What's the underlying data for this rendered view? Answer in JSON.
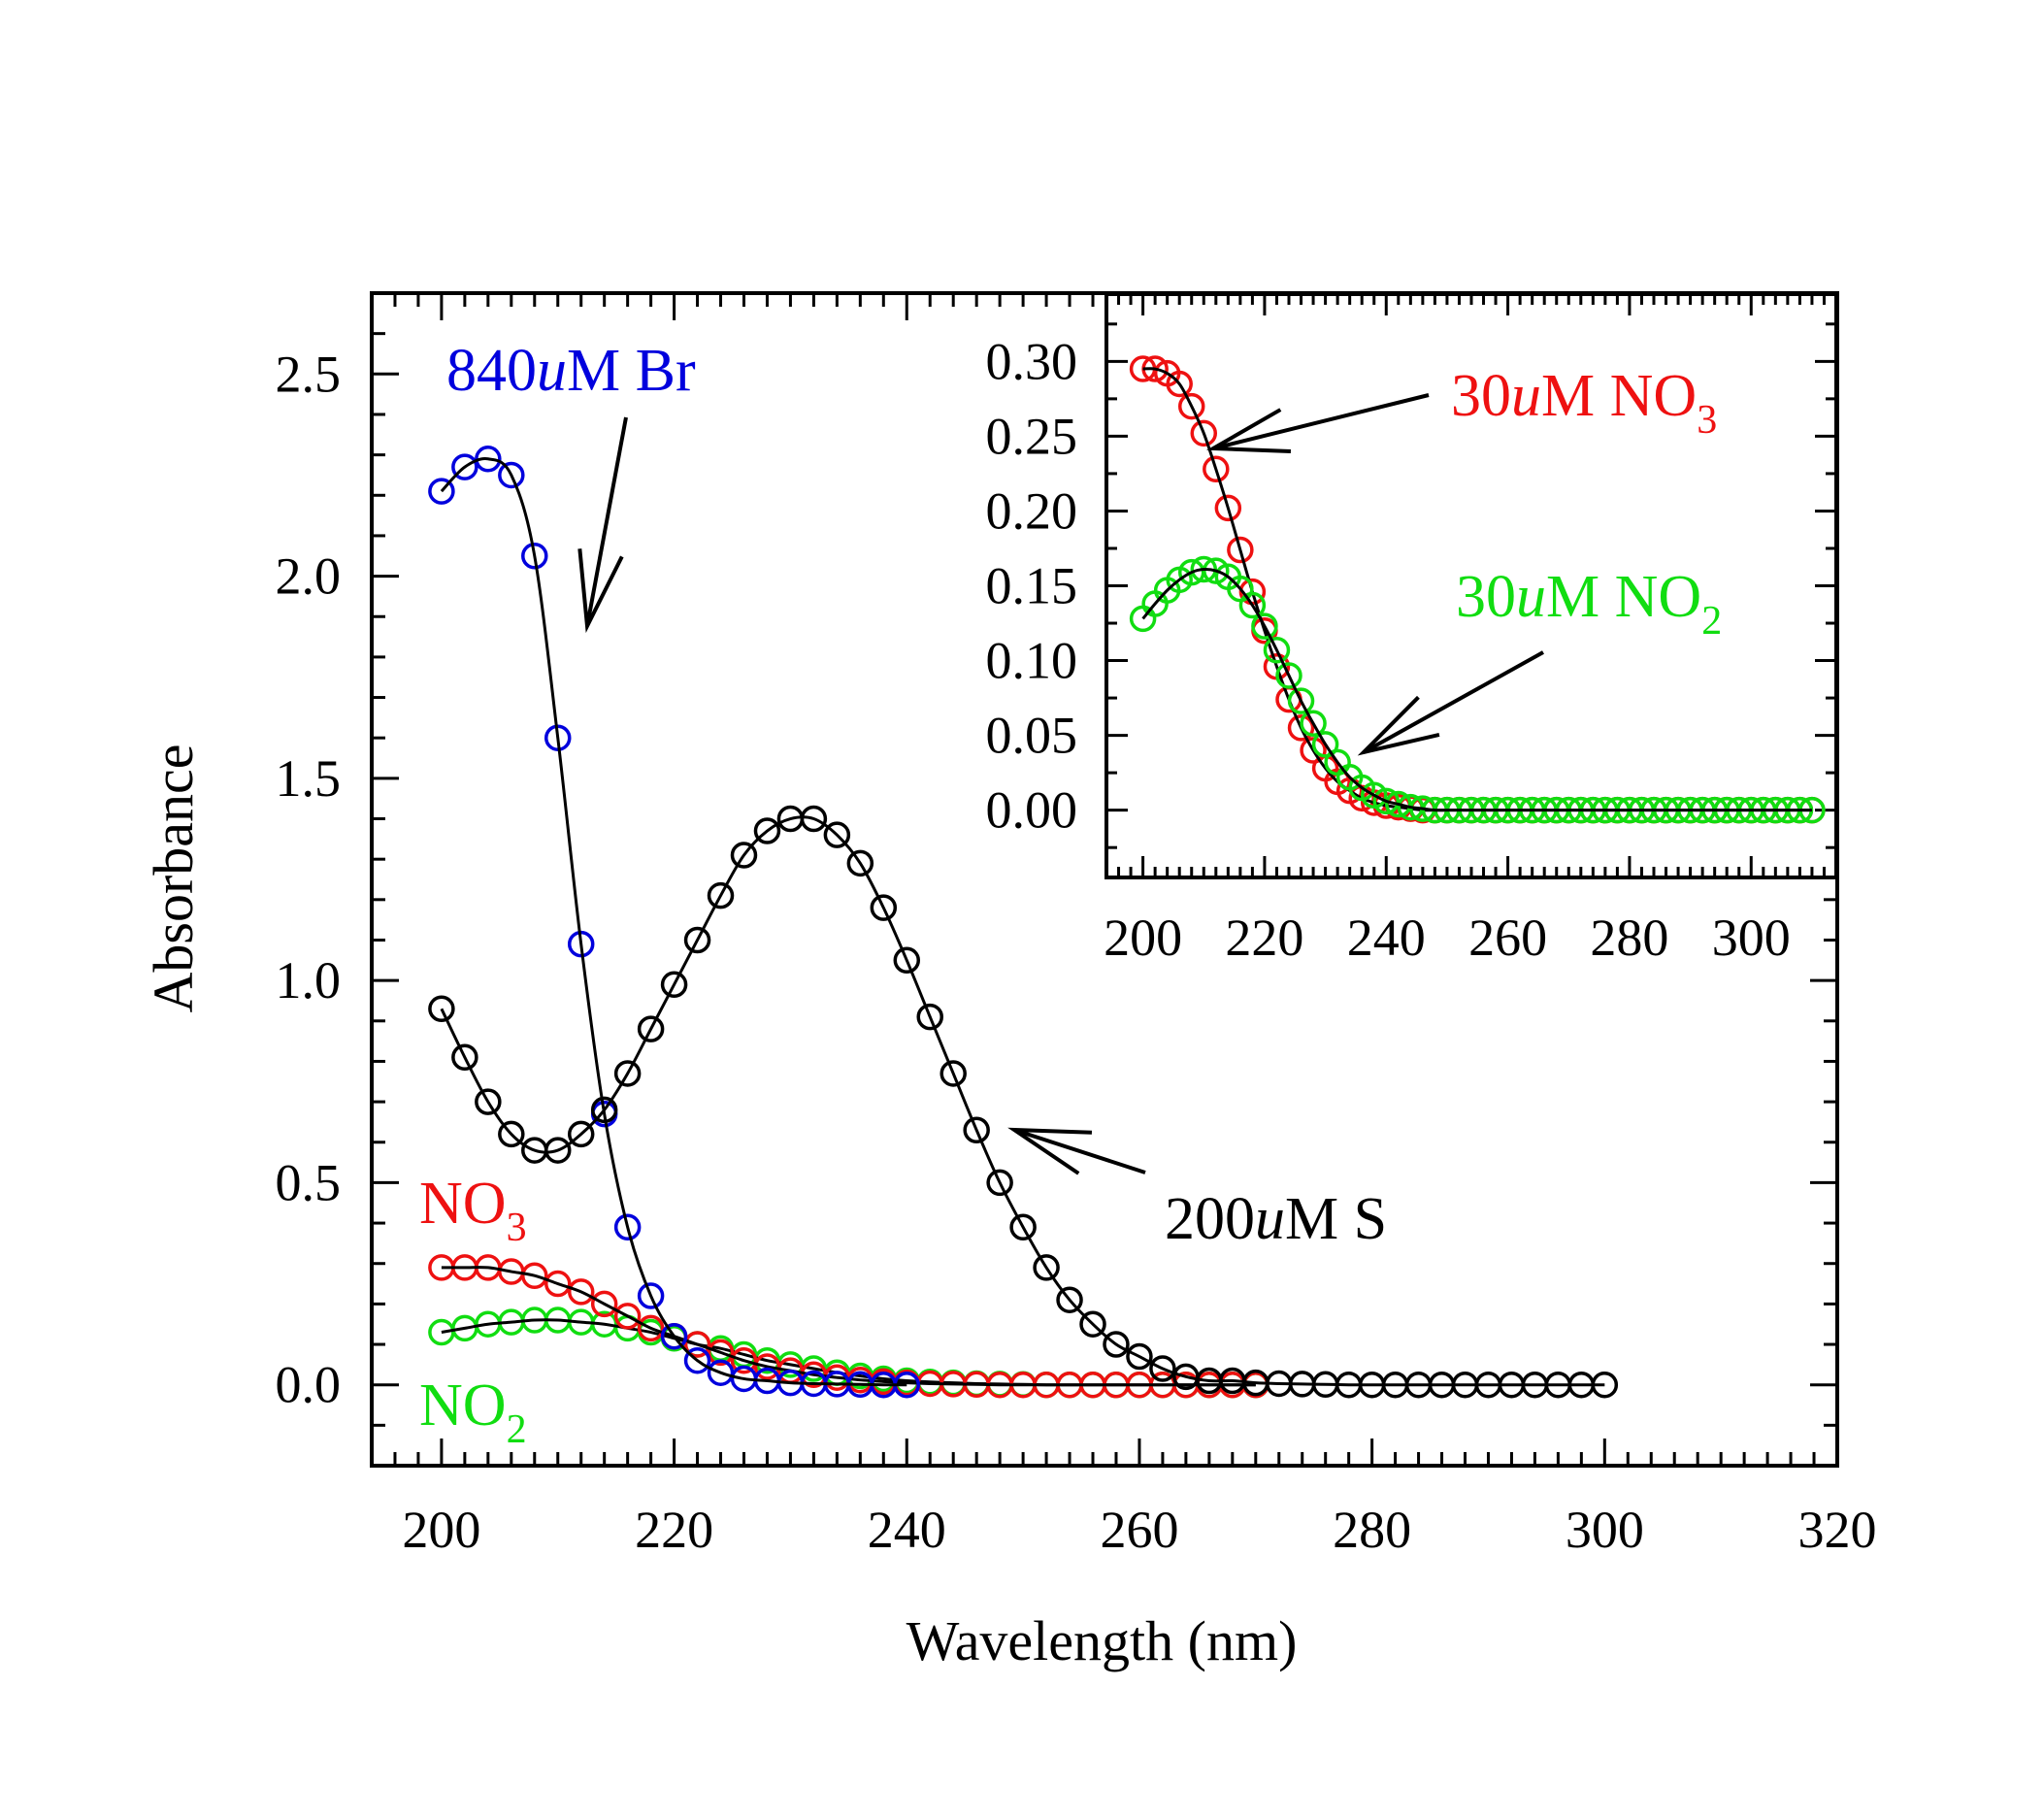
{
  "colors": {
    "Br": "#0000dd",
    "S": "#000000",
    "NO3": "#ee1111",
    "NO2": "#11dd11",
    "fit": "#000000"
  },
  "chart_data": [
    {
      "type": "scatter",
      "panel": "main",
      "xlabel": "Wavelength (nm)",
      "ylabel": "Absorbance",
      "xlim": [
        194,
        320
      ],
      "ylim": [
        -0.2,
        2.7
      ],
      "xticks": [
        200,
        220,
        240,
        260,
        280,
        300,
        320
      ],
      "yticks": [
        0.0,
        0.5,
        1.0,
        1.5,
        2.0,
        2.5
      ],
      "x_tick_labels": [
        "200",
        "220",
        "240",
        "260",
        "280",
        "300",
        "320"
      ],
      "y_tick_labels": [
        "0.0",
        "0.5",
        "1.0",
        "1.5",
        "2.0",
        "2.5"
      ],
      "annotations": [
        {
          "key": "Br",
          "prefix": "840",
          "italic": "u",
          "suffix": "M Br",
          "sub": ""
        },
        {
          "key": "S",
          "prefix": "200",
          "italic": "u",
          "suffix": "M S",
          "sub": ""
        },
        {
          "key": "NO3",
          "prefix": "",
          "italic": "",
          "suffix": "NO",
          "sub": "3"
        },
        {
          "key": "NO2",
          "prefix": "",
          "italic": "",
          "suffix": "NO",
          "sub": "2"
        }
      ],
      "series": [
        {
          "key": "Br",
          "x": [
            200,
            202,
            204,
            206,
            208,
            210,
            212,
            214,
            216,
            218,
            220,
            222,
            224,
            226,
            228,
            230,
            232,
            234,
            236,
            238,
            240
          ],
          "y": [
            2.21,
            2.27,
            2.29,
            2.25,
            2.05,
            1.6,
            1.09,
            0.67,
            0.39,
            0.22,
            0.12,
            0.06,
            0.03,
            0.015,
            0.01,
            0.005,
            0.003,
            0.002,
            0.001,
            0.0,
            0.0
          ]
        },
        {
          "key": "S",
          "x": [
            200,
            202,
            204,
            206,
            208,
            210,
            212,
            214,
            216,
            218,
            220,
            222,
            224,
            226,
            228,
            230,
            232,
            234,
            236,
            238,
            240,
            242,
            244,
            246,
            248,
            250,
            252,
            254,
            256,
            258,
            260,
            262,
            264,
            266,
            268,
            270,
            272,
            274,
            276,
            278,
            280,
            282,
            284,
            286,
            288,
            290,
            292,
            294,
            296,
            298,
            300
          ],
          "y": [
            0.93,
            0.81,
            0.7,
            0.62,
            0.58,
            0.58,
            0.62,
            0.68,
            0.77,
            0.88,
            0.99,
            1.1,
            1.21,
            1.31,
            1.37,
            1.4,
            1.4,
            1.36,
            1.29,
            1.18,
            1.05,
            0.91,
            0.77,
            0.63,
            0.5,
            0.39,
            0.29,
            0.21,
            0.15,
            0.1,
            0.07,
            0.04,
            0.02,
            0.01,
            0.01,
            0.005,
            0.003,
            0.002,
            0.001,
            0.0,
            0.0,
            0.0,
            0.0,
            0.0,
            0.0,
            0.0,
            0.0,
            0.0,
            0.0,
            0.0,
            0.0
          ]
        },
        {
          "key": "NO3",
          "x": [
            200,
            202,
            204,
            206,
            208,
            210,
            212,
            214,
            216,
            218,
            220,
            222,
            224,
            226,
            228,
            230,
            232,
            234,
            236,
            238,
            240,
            242,
            244,
            246,
            248,
            250,
            252,
            254,
            256,
            258,
            260,
            262,
            264,
            266,
            268,
            270
          ],
          "y": [
            0.29,
            0.29,
            0.29,
            0.28,
            0.27,
            0.25,
            0.23,
            0.2,
            0.17,
            0.14,
            0.12,
            0.1,
            0.08,
            0.06,
            0.045,
            0.035,
            0.025,
            0.018,
            0.012,
            0.008,
            0.005,
            0.003,
            0.002,
            0.001,
            0.0,
            0.0,
            0.0,
            0.0,
            0.0,
            0.0,
            0.0,
            0.0,
            0.0,
            0.0,
            0.0,
            0.0
          ]
        },
        {
          "key": "NO2",
          "x": [
            200,
            202,
            204,
            206,
            208,
            210,
            212,
            214,
            216,
            218,
            220,
            222,
            224,
            226,
            228,
            230,
            232,
            234,
            236,
            238,
            240,
            242,
            244,
            246,
            248,
            250,
            252,
            254,
            256,
            258,
            260,
            262,
            264,
            266,
            268,
            270
          ],
          "y": [
            0.13,
            0.14,
            0.15,
            0.155,
            0.16,
            0.16,
            0.155,
            0.15,
            0.14,
            0.13,
            0.115,
            0.1,
            0.09,
            0.075,
            0.06,
            0.05,
            0.04,
            0.03,
            0.022,
            0.015,
            0.01,
            0.007,
            0.005,
            0.003,
            0.002,
            0.001,
            0.0,
            0.0,
            0.0,
            0.0,
            0.0,
            0.0,
            0.0,
            0.0,
            0.0,
            0.0
          ]
        }
      ]
    },
    {
      "type": "scatter",
      "panel": "inset",
      "xlabel": "",
      "ylabel": "",
      "xlim": [
        194,
        314
      ],
      "ylim": [
        -0.045,
        0.345
      ],
      "xticks": [
        200,
        220,
        240,
        260,
        280,
        300
      ],
      "yticks": [
        0.0,
        0.05,
        0.1,
        0.15,
        0.2,
        0.25,
        0.3
      ],
      "x_tick_labels": [
        "200",
        "220",
        "240",
        "260",
        "280",
        "300"
      ],
      "y_tick_labels": [
        "0.00",
        "0.05",
        "0.10",
        "0.15",
        "0.20",
        "0.25",
        "0.30"
      ],
      "annotations": [
        {
          "key": "NO3",
          "prefix": "30",
          "italic": "u",
          "suffix": "M NO",
          "sub": "3"
        },
        {
          "key": "NO2",
          "prefix": "30",
          "italic": "u",
          "suffix": "M NO",
          "sub": "2"
        }
      ],
      "series": [
        {
          "key": "NO3",
          "x": [
            200,
            202,
            204,
            206,
            208,
            210,
            212,
            214,
            216,
            218,
            220,
            222,
            224,
            226,
            228,
            230,
            232,
            234,
            236,
            238,
            240,
            242,
            244,
            246,
            248,
            250,
            252,
            254,
            256,
            258,
            260,
            262,
            264,
            266,
            268,
            270,
            272,
            274,
            276,
            278,
            280,
            282,
            284,
            286,
            288,
            290,
            292,
            294,
            296,
            298,
            300,
            302,
            304,
            306,
            308,
            310
          ],
          "y": [
            0.295,
            0.295,
            0.292,
            0.285,
            0.27,
            0.252,
            0.228,
            0.202,
            0.174,
            0.146,
            0.12,
            0.096,
            0.074,
            0.055,
            0.04,
            0.028,
            0.019,
            0.013,
            0.008,
            0.005,
            0.003,
            0.002,
            0.001,
            0.0,
            0.0,
            0.0,
            0.0,
            0.0,
            0.0,
            0.0,
            0.0,
            0.0,
            0.0,
            0.0,
            0.0,
            0.0,
            0.0,
            0.0,
            0.0,
            0.0,
            0.0,
            0.0,
            0.0,
            0.0,
            0.0,
            0.0,
            0.0,
            0.0,
            0.0,
            0.0,
            0.0,
            0.0,
            0.0,
            0.0,
            0.0,
            0.0
          ]
        },
        {
          "key": "NO2",
          "x": [
            200,
            202,
            204,
            206,
            208,
            210,
            212,
            214,
            216,
            218,
            220,
            222,
            224,
            226,
            228,
            230,
            232,
            234,
            236,
            238,
            240,
            242,
            244,
            246,
            248,
            250,
            252,
            254,
            256,
            258,
            260,
            262,
            264,
            266,
            268,
            270,
            272,
            274,
            276,
            278,
            280,
            282,
            284,
            286,
            288,
            290,
            292,
            294,
            296,
            298,
            300,
            302,
            304,
            306,
            308,
            310
          ],
          "y": [
            0.128,
            0.138,
            0.147,
            0.154,
            0.159,
            0.161,
            0.16,
            0.156,
            0.148,
            0.137,
            0.123,
            0.107,
            0.09,
            0.073,
            0.058,
            0.044,
            0.032,
            0.022,
            0.015,
            0.01,
            0.006,
            0.004,
            0.002,
            0.001,
            0.0,
            0.0,
            0.0,
            0.0,
            0.0,
            0.0,
            0.0,
            0.0,
            0.0,
            0.0,
            0.0,
            0.0,
            0.0,
            0.0,
            0.0,
            0.0,
            0.0,
            0.0,
            0.0,
            0.0,
            0.0,
            0.0,
            0.0,
            0.0,
            0.0,
            0.0,
            0.0,
            0.0,
            0.0,
            0.0,
            0.0,
            0.0
          ]
        }
      ]
    }
  ]
}
